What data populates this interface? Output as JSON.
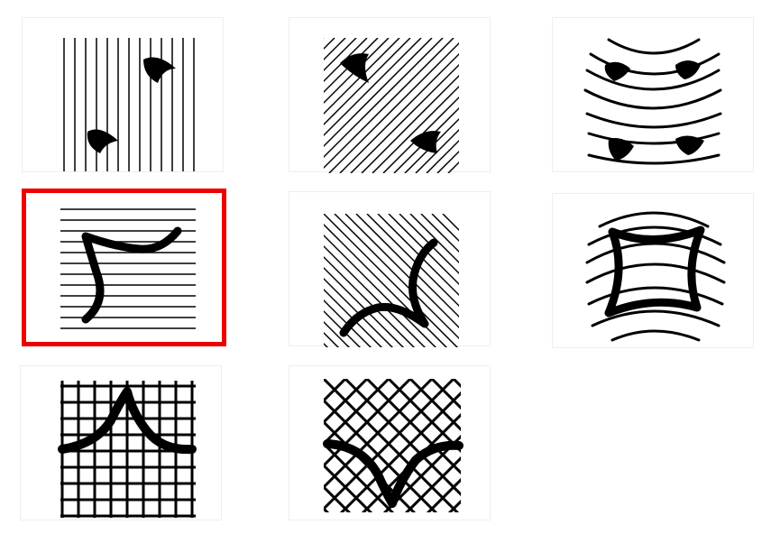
{
  "grid": {
    "tiles": [
      {
        "id": 1,
        "pattern": "vertical-lines",
        "mark": "two-blobs",
        "selected": false
      },
      {
        "id": 2,
        "pattern": "diagonal-lines",
        "mark": "two-blobs",
        "selected": false
      },
      {
        "id": 3,
        "pattern": "concentric-arcs",
        "mark": "four-blobs",
        "selected": false
      },
      {
        "id": 4,
        "pattern": "horizontal-lines",
        "mark": "curved-stroke",
        "selected": true
      },
      {
        "id": 5,
        "pattern": "diagonal-lines",
        "mark": "curved-stroke",
        "selected": false
      },
      {
        "id": 6,
        "pattern": "concentric-arcs",
        "mark": "concave-square",
        "selected": false
      },
      {
        "id": 7,
        "pattern": "square-grid",
        "mark": "peak-stroke",
        "selected": false
      },
      {
        "id": 8,
        "pattern": "diamond-grid",
        "mark": "valley-stroke",
        "selected": false
      }
    ],
    "selection_color": "#ee0000"
  }
}
